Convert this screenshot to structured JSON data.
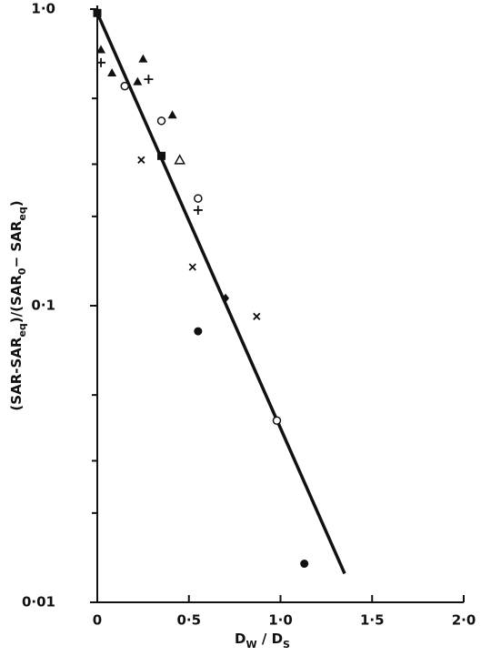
{
  "chart_data": {
    "type": "scatter",
    "xlabel": [
      {
        "text": "D"
      },
      {
        "text": "W",
        "sub": true
      },
      {
        "text": " / D"
      },
      {
        "text": "S",
        "sub": true
      }
    ],
    "ylabel": [
      {
        "text": "(SAR-SAR"
      },
      {
        "text": "eq",
        "sub": true
      },
      {
        "text": ")/(SAR"
      },
      {
        "text": "0",
        "sub": true
      },
      {
        "text": "− SAR"
      },
      {
        "text": "eq",
        "sub": true
      },
      {
        "text": ")"
      }
    ],
    "xlim": [
      0,
      2.0
    ],
    "ylim": [
      0.01,
      1.0
    ],
    "ylog": true,
    "xticks": [
      0,
      {
        "value": 0.5,
        "label": "0·5"
      },
      {
        "value": 1.0,
        "label": "1·0"
      },
      {
        "value": 1.5,
        "label": "1·5"
      },
      {
        "value": 2.0,
        "label": "2·0"
      }
    ],
    "yticks": [
      {
        "value": 0.01,
        "label": "0·01"
      },
      {
        "value": 0.1,
        "label": "0·1"
      },
      {
        "value": 1.0,
        "label": "1·0"
      }
    ],
    "yminorticks": [
      0.02,
      0.03,
      0.05,
      0.2,
      0.3,
      0.5
    ],
    "color": "#111",
    "series": [
      {
        "marker": "triangle-filled",
        "x": [
          0.02,
          0.08,
          0.25,
          0.22,
          0.41
        ],
        "values": [
          0.73,
          0.61,
          0.68,
          0.57,
          0.44
        ]
      },
      {
        "marker": "plus",
        "x": [
          0.02,
          0.28,
          0.55
        ],
        "values": [
          0.66,
          0.58,
          0.21
        ]
      },
      {
        "marker": "circle-open",
        "x": [
          0.15,
          0.35,
          0.55,
          0.98
        ],
        "values": [
          0.55,
          0.42,
          0.23,
          0.041
        ]
      },
      {
        "marker": "cross",
        "x": [
          0.24,
          0.52,
          0.87
        ],
        "values": [
          0.31,
          0.135,
          0.092
        ]
      },
      {
        "marker": "triangle-open",
        "x": [
          0.45
        ],
        "values": [
          0.31
        ]
      },
      {
        "marker": "square-filled",
        "x": [
          0.0,
          0.35
        ],
        "values": [
          0.97,
          0.32
        ]
      },
      {
        "marker": "circle-filled",
        "x": [
          0.55,
          1.13
        ],
        "values": [
          0.082,
          0.0135
        ]
      },
      {
        "marker": "diamond-filled",
        "x": [
          0.7
        ],
        "values": [
          0.106
        ]
      }
    ],
    "fit_line": {
      "x": [
        0,
        1.35
      ],
      "values": [
        0.97,
        0.0125
      ]
    }
  }
}
